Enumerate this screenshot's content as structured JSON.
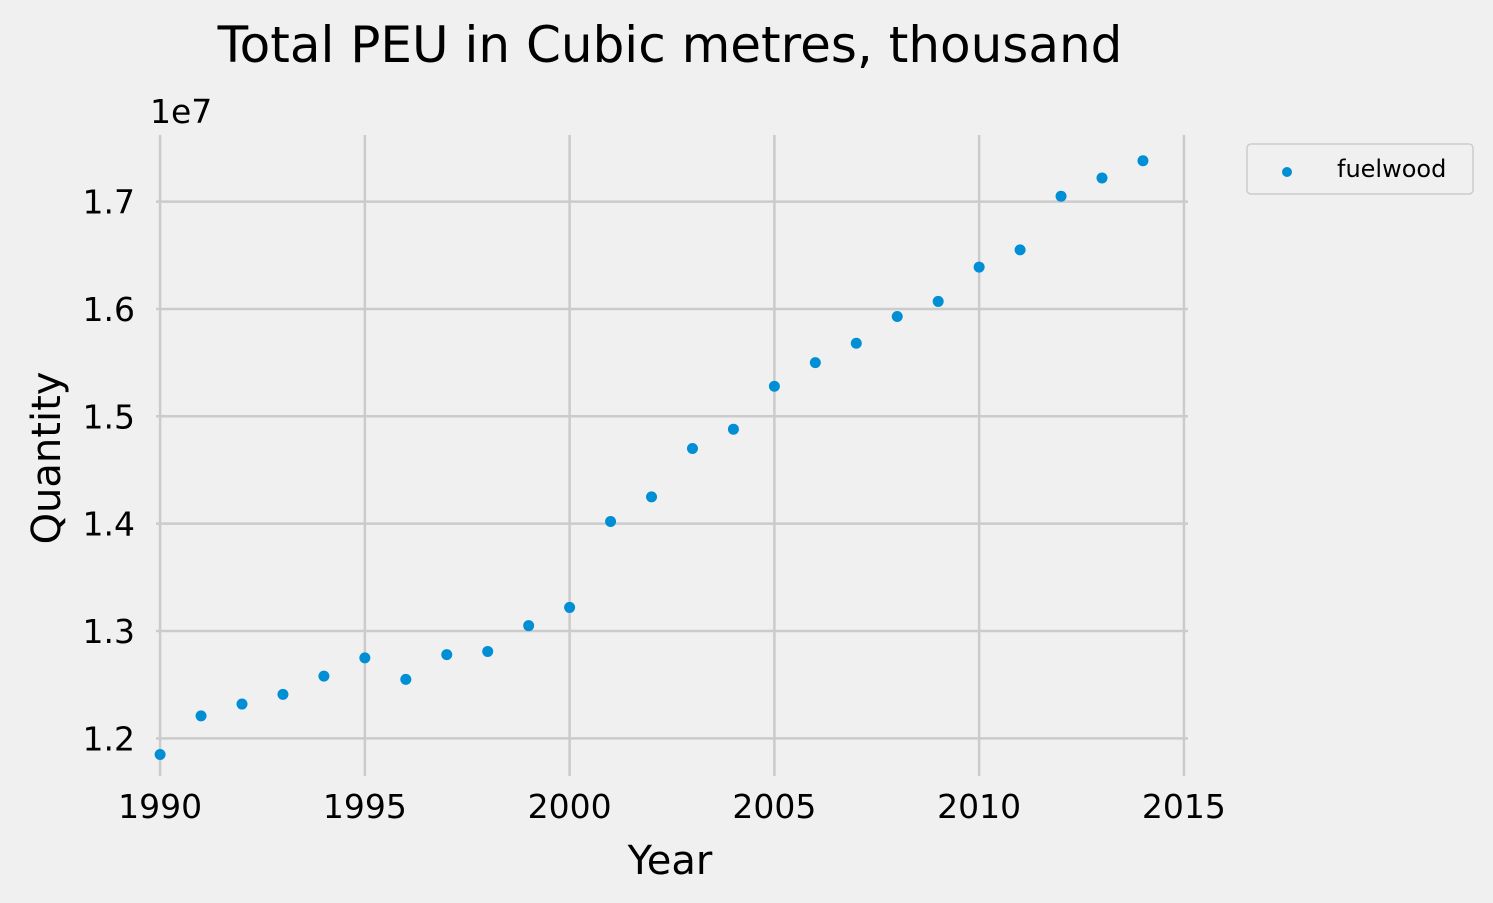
{
  "chart_data": {
    "type": "scatter",
    "title": "Total PEU in Cubic metres, thousand",
    "xlabel": "Year",
    "ylabel": "Quantity",
    "y_offset_label": "1e7",
    "xlim": [
      1989.9,
      2015.1
    ],
    "ylim": [
      11.65,
      17.62
    ],
    "x_ticks": [
      1990,
      1995,
      2000,
      2005,
      2010,
      2015
    ],
    "x_tick_labels": [
      "1990",
      "1995",
      "2000",
      "2005",
      "2010",
      "2015"
    ],
    "y_ticks": [
      12.0,
      13.0,
      14.0,
      15.0,
      16.0,
      17.0
    ],
    "y_tick_labels": [
      "1.2",
      "1.3",
      "1.4",
      "1.5",
      "1.6",
      "1.7"
    ],
    "grid": true,
    "legend_position": "outside top-right",
    "colors": {
      "background": "#f0f0f0",
      "series": "#008fd5",
      "grid": "#cbcbcb"
    },
    "series": [
      {
        "name": "fuelwood",
        "x": [
          1990,
          1991,
          1992,
          1993,
          1994,
          1995,
          1996,
          1997,
          1998,
          1999,
          2000,
          2001,
          2002,
          2003,
          2004,
          2005,
          2006,
          2007,
          2008,
          2009,
          2010,
          2011,
          2012,
          2013,
          2014
        ],
        "y": [
          11.85,
          12.21,
          12.32,
          12.41,
          12.58,
          12.75,
          12.55,
          12.78,
          12.81,
          13.05,
          13.22,
          14.02,
          14.25,
          14.7,
          14.88,
          15.28,
          15.5,
          15.68,
          15.93,
          16.07,
          16.39,
          16.55,
          17.05,
          17.22,
          17.38
        ]
      }
    ]
  }
}
